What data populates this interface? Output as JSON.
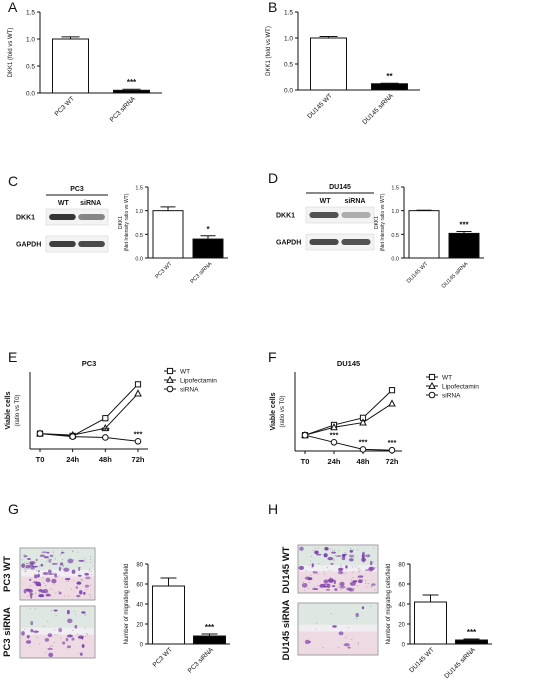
{
  "panels": [
    "A",
    "B",
    "C",
    "D",
    "E",
    "F",
    "G",
    "H"
  ],
  "colors": {
    "wt": "#ffffff",
    "sirna": "#000000",
    "stroke": "#111111",
    "lipo": "#ffffff",
    "band": "#2b2b2b",
    "purple": "#7a3aa8",
    "green": "#bcd9c4",
    "pink": "#e9c0cf"
  },
  "chart_data": [
    {
      "id": "A",
      "type": "bar",
      "categories": [
        "PC3 WT",
        "PC3 siRNA"
      ],
      "values": [
        1.0,
        0.05
      ],
      "errors": [
        0.04,
        0.02
      ],
      "ylabel": "DKK1 (fold vs WT)",
      "ylim": [
        0,
        1.5
      ],
      "yticks": [
        "0.0",
        "0.5",
        "1.0",
        "1.5"
      ],
      "significance": [
        "",
        "***"
      ]
    },
    {
      "id": "B",
      "type": "bar",
      "categories": [
        "DU145 WT",
        "DU145 siRNA"
      ],
      "values": [
        1.0,
        0.12
      ],
      "errors": [
        0.03,
        0.01
      ],
      "ylabel": "DKK1 (fold vs WT)",
      "ylim": [
        0,
        1.5
      ],
      "yticks": [
        "0.0",
        "0.5",
        "1.0",
        "1.5"
      ],
      "significance": [
        "",
        "**"
      ]
    },
    {
      "id": "C",
      "type": "bar",
      "categories": [
        "PC3 WT",
        "PC3 siRNA"
      ],
      "values": [
        1.0,
        0.4
      ],
      "errors": [
        0.08,
        0.07
      ],
      "ylabel": "DKK1",
      "ylabel2": "(Net Intensity ratio vs WT)",
      "ylim": [
        0,
        1.5
      ],
      "yticks": [
        "0.0",
        "0.5",
        "1.0",
        "1.5"
      ],
      "significance": [
        "",
        "*"
      ],
      "blot": {
        "title": "PC3",
        "lanes": [
          "WT",
          "siRNA"
        ],
        "rows": [
          "DKK1",
          "GAPDH"
        ]
      }
    },
    {
      "id": "D",
      "type": "bar",
      "categories": [
        "DU145 WT",
        "DU145 siRNA"
      ],
      "values": [
        1.0,
        0.52
      ],
      "errors": [
        0.01,
        0.04
      ],
      "ylabel": "DKK1",
      "ylabel2": "(Net Intensity ratio vs WT)",
      "ylim": [
        0,
        1.5
      ],
      "yticks": [
        "0.0",
        "0.5",
        "1.0",
        "1.5"
      ],
      "significance": [
        "",
        "***"
      ],
      "blot": {
        "title": "DU145",
        "lanes": [
          "WT",
          "siRNA"
        ],
        "rows": [
          "DKK1",
          "GAPDH"
        ]
      }
    },
    {
      "id": "E",
      "type": "line",
      "title": "PC3",
      "categories": [
        "T0",
        "24h",
        "48h",
        "72h"
      ],
      "ylabel": "Viable cells",
      "ylabel2": "(ratio vs T0)",
      "ylim": [
        0,
        5
      ],
      "series": [
        {
          "name": "WT",
          "marker": "square",
          "values": [
            1.0,
            0.85,
            2.0,
            4.2
          ],
          "errors": [
            0.05,
            0.1,
            0.2,
            0.15
          ]
        },
        {
          "name": "Lipofectamin",
          "marker": "triangle",
          "values": [
            1.0,
            0.9,
            1.35,
            3.6
          ],
          "errors": [
            0.05,
            0.1,
            0.1,
            0.15
          ]
        },
        {
          "name": "siRNA",
          "marker": "circle",
          "values": [
            1.0,
            0.8,
            0.75,
            0.5
          ],
          "errors": [
            0.05,
            0.05,
            0.05,
            0.05
          ]
        }
      ],
      "significance": [
        "",
        "",
        "***",
        "***"
      ]
    },
    {
      "id": "F",
      "type": "line",
      "title": "DU145",
      "categories": [
        "T0",
        "24h",
        "48h",
        "72h"
      ],
      "ylabel": "Viable cells",
      "ylabel2": "(ratio vs T0)",
      "ylim": [
        0,
        5
      ],
      "series": [
        {
          "name": "WT",
          "marker": "square",
          "values": [
            1.0,
            1.65,
            2.1,
            3.85
          ],
          "errors": [
            0.05,
            0.15,
            0.15,
            0.15
          ]
        },
        {
          "name": "Lipofectamin",
          "marker": "triangle",
          "values": [
            1.0,
            1.5,
            1.8,
            3.0
          ],
          "errors": [
            0.05,
            0.1,
            0.1,
            0.15
          ]
        },
        {
          "name": "siRNA",
          "marker": "circle",
          "values": [
            1.0,
            0.55,
            0.1,
            0.05
          ],
          "errors": [
            0.05,
            0.05,
            0.03,
            0.02
          ]
        }
      ],
      "significance": [
        "",
        "***",
        "***",
        "***"
      ]
    },
    {
      "id": "G",
      "type": "bar",
      "categories": [
        "PC3 WT",
        "PC3 siRNA"
      ],
      "values": [
        58,
        8
      ],
      "errors": [
        8,
        2
      ],
      "ylabel": "Number of migrating cells/field",
      "ylim": [
        0,
        80
      ],
      "yticks": [
        "0",
        "20",
        "40",
        "60",
        "80"
      ],
      "significance": [
        "",
        "***"
      ],
      "images": [
        "PC3 WT",
        "PC3 siRNA"
      ]
    },
    {
      "id": "H",
      "type": "bar",
      "categories": [
        "DU145 WT",
        "DU145 siRNA"
      ],
      "values": [
        42,
        4
      ],
      "errors": [
        7,
        1
      ],
      "ylabel": "Number of migrating cells/field",
      "ylim": [
        0,
        80
      ],
      "yticks": [
        "0",
        "20",
        "40",
        "60",
        "80"
      ],
      "significance": [
        "",
        "***"
      ],
      "images": [
        "DU145 WT",
        "DU145 siRNA"
      ]
    }
  ]
}
